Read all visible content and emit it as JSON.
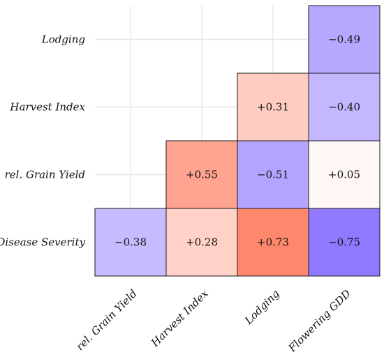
{
  "chart_data": {
    "type": "heatmap",
    "title": "",
    "xlabel": "",
    "ylabel": "",
    "x_categories": [
      "rel. Grain Yield",
      "Harvest Index",
      "Lodging",
      "Flowering GDD"
    ],
    "y_categories": [
      "Lodging",
      "Harvest Index",
      "rel. Grain Yield",
      "Disease Severity"
    ],
    "cells": [
      {
        "x": "Flowering GDD",
        "y": "Lodging",
        "value": -0.49,
        "label": "−0.49"
      },
      {
        "x": "Lodging",
        "y": "Harvest Index",
        "value": 0.31,
        "label": "+0.31"
      },
      {
        "x": "Flowering GDD",
        "y": "Harvest Index",
        "value": -0.4,
        "label": "−0.40"
      },
      {
        "x": "Harvest Index",
        "y": "rel. Grain Yield",
        "value": 0.55,
        "label": "+0.55"
      },
      {
        "x": "Lodging",
        "y": "rel. Grain Yield",
        "value": -0.51,
        "label": "−0.51"
      },
      {
        "x": "Flowering GDD",
        "y": "rel. Grain Yield",
        "value": 0.05,
        "label": "+0.05"
      },
      {
        "x": "rel. Grain Yield",
        "y": "Disease Severity",
        "value": -0.38,
        "label": "−0.38"
      },
      {
        "x": "Harvest Index",
        "y": "Disease Severity",
        "value": 0.28,
        "label": "+0.28"
      },
      {
        "x": "Lodging",
        "y": "Disease Severity",
        "value": 0.73,
        "label": "+0.73"
      },
      {
        "x": "Flowering GDD",
        "y": "Disease Severity",
        "value": -0.75,
        "label": "−0.75"
      }
    ],
    "value_range": [
      -1,
      1
    ],
    "colors": {
      "negative": "#6b4cff",
      "neutral": "#ffffff",
      "positive": "#ff5a36"
    },
    "grid": true,
    "legend": "none"
  }
}
